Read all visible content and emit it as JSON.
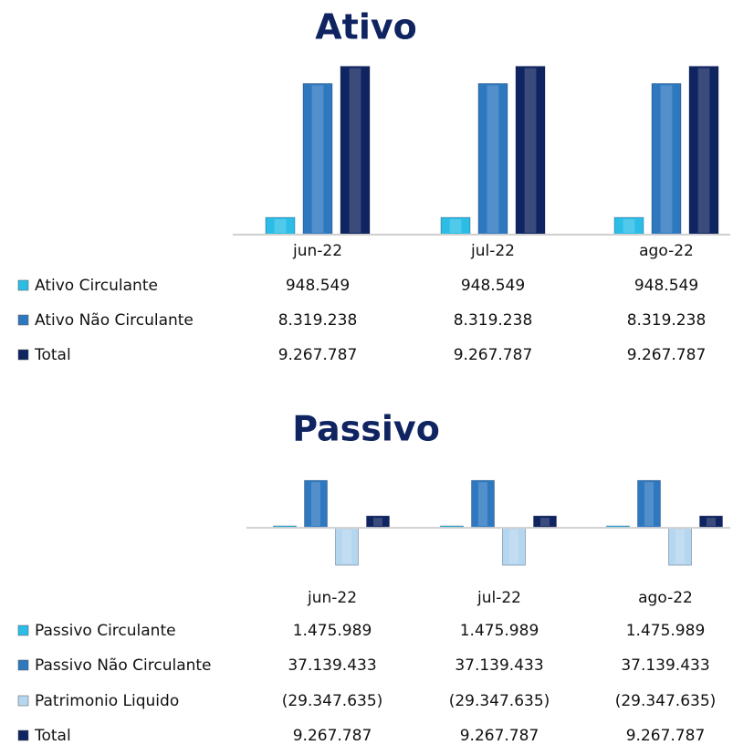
{
  "chart_data": [
    {
      "type": "bar",
      "title": "Ativo",
      "categories": [
        "jun-22",
        "jul-22",
        "ago-22"
      ],
      "ylim": [
        0,
        9300000
      ],
      "series": [
        {
          "name": "Ativo Circulante",
          "color": "#2bbde6",
          "values": [
            948549,
            948549,
            948549
          ],
          "value_labels": [
            "948.549",
            "948.549",
            "948.549"
          ]
        },
        {
          "name": "Ativo Não Circulante",
          "color": "#2e78c0",
          "values": [
            8319238,
            8319238,
            8319238
          ],
          "value_labels": [
            "8.319.238",
            "8.319.238",
            "8.319.238"
          ]
        },
        {
          "name": "Total",
          "color": "#0f2460",
          "values": [
            9267787,
            9267787,
            9267787
          ],
          "value_labels": [
            "9.267.787",
            "9.267.787",
            "9.267.787"
          ]
        }
      ]
    },
    {
      "type": "bar",
      "title": "Passivo",
      "categories": [
        "jun-22",
        "jul-22",
        "ago-22"
      ],
      "ylim": [
        -30000000,
        38000000
      ],
      "series": [
        {
          "name": "Passivo Circulante",
          "color": "#2bbde6",
          "values": [
            1475989,
            1475989,
            1475989
          ],
          "value_labels": [
            "1.475.989",
            "1.475.989",
            "1.475.989"
          ]
        },
        {
          "name": "Passivo Não Circulante",
          "color": "#2e78c0",
          "values": [
            37139433,
            37139433,
            37139433
          ],
          "value_labels": [
            "37.139.433",
            "37.139.433",
            "37.139.433"
          ]
        },
        {
          "name": "Patrimonio Liquido",
          "color": "#b5d6ef",
          "values": [
            -29347635,
            -29347635,
            -29347635
          ],
          "value_labels": [
            "(29.347.635)",
            "(29.347.635)",
            "(29.347.635)"
          ]
        },
        {
          "name": "Total",
          "color": "#0f2460",
          "values": [
            9267787,
            9267787,
            9267787
          ],
          "value_labels": [
            "9.267.787",
            "9.267.787",
            "9.267.787"
          ]
        }
      ]
    }
  ]
}
